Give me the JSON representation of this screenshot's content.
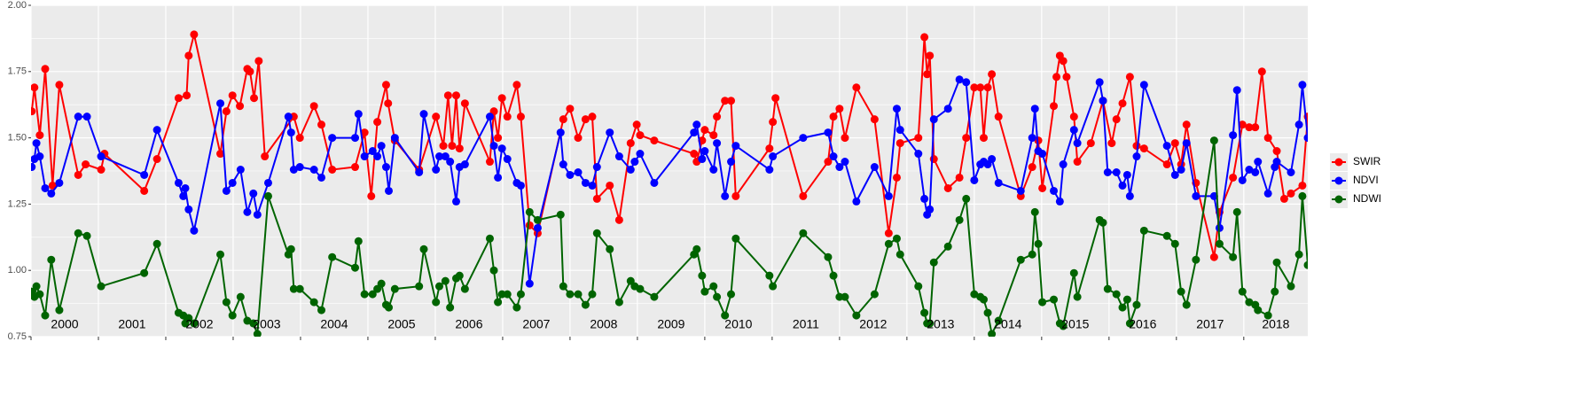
{
  "chart_data": {
    "type": "line",
    "xlim": [
      2000,
      2018.95
    ],
    "ylim": [
      0.75,
      2.0
    ],
    "xticks": [
      2000,
      2001,
      2002,
      2003,
      2004,
      2005,
      2006,
      2007,
      2008,
      2009,
      2010,
      2011,
      2012,
      2013,
      2014,
      2015,
      2016,
      2017,
      2018
    ],
    "yticks": [
      {
        "value": 0.75,
        "label": "0.75"
      },
      {
        "value": 1.0,
        "label": "1.00"
      },
      {
        "value": 1.25,
        "label": "1.25"
      },
      {
        "value": 1.5,
        "label": "1.50"
      },
      {
        "value": 1.75,
        "label": "1.75"
      },
      {
        "value": 2.0,
        "label": "2.00"
      }
    ],
    "grid": true,
    "legend": "right",
    "series": [
      {
        "name": "SWIR",
        "color": "#ff0000",
        "x": [
          2000.01,
          2000.05,
          2000.13,
          2000.21,
          2000.32,
          2000.42,
          2000.7,
          2000.81,
          2001.04,
          2001.09,
          2001.68,
          2001.87,
          2002.19,
          2002.31,
          2002.34,
          2002.42,
          2002.81,
          2002.9,
          2002.99,
          2003.1,
          2003.21,
          2003.25,
          2003.31,
          2003.38,
          2003.47,
          2003.9,
          2003.99,
          2004.2,
          2004.31,
          2004.47,
          2004.81,
          2004.95,
          2005.05,
          2005.14,
          2005.27,
          2005.3,
          2005.4,
          2005.76,
          2006.01,
          2006.12,
          2006.19,
          2006.25,
          2006.31,
          2006.36,
          2006.44,
          2006.81,
          2006.87,
          2006.93,
          2006.99,
          2007.07,
          2007.21,
          2007.27,
          2007.4,
          2007.52,
          2007.9,
          2008.0,
          2008.12,
          2008.23,
          2008.33,
          2008.4,
          2008.59,
          2008.73,
          2008.9,
          2008.99,
          2009.04,
          2009.25,
          2009.84,
          2009.88,
          2009.96,
          2010.0,
          2010.13,
          2010.18,
          2010.3,
          2010.39,
          2010.46,
          2010.96,
          2011.01,
          2011.05,
          2011.46,
          2011.83,
          2011.91,
          2012.0,
          2012.08,
          2012.25,
          2012.52,
          2012.73,
          2012.85,
          2012.9,
          2013.17,
          2013.26,
          2013.3,
          2013.34,
          2013.4,
          2013.61,
          2013.78,
          2013.88,
          2014.0,
          2014.09,
          2014.14,
          2014.2,
          2014.26,
          2014.36,
          2014.69,
          2014.86,
          2014.95,
          2015.01,
          2015.18,
          2015.22,
          2015.27,
          2015.32,
          2015.37,
          2015.48,
          2015.53,
          2015.73,
          2015.91,
          2016.04,
          2016.11,
          2016.2,
          2016.31,
          2016.41,
          2016.52,
          2016.86,
          2016.98,
          2017.07,
          2017.15,
          2017.29,
          2017.56,
          2017.64,
          2017.84,
          2017.98,
          2018.08,
          2018.17,
          2018.27,
          2018.36,
          2018.49,
          2018.6,
          2018.7,
          2018.87,
          2018.95
        ],
        "values": [
          1.6,
          1.69,
          1.51,
          1.76,
          1.32,
          1.7,
          1.36,
          1.4,
          1.38,
          1.44,
          1.3,
          1.42,
          1.65,
          1.66,
          1.81,
          1.89,
          1.44,
          1.6,
          1.66,
          1.62,
          1.76,
          1.75,
          1.65,
          1.79,
          1.43,
          1.58,
          1.5,
          1.62,
          1.55,
          1.38,
          1.39,
          1.52,
          1.28,
          1.56,
          1.7,
          1.63,
          1.49,
          1.38,
          1.58,
          1.47,
          1.66,
          1.47,
          1.66,
          1.46,
          1.63,
          1.41,
          1.6,
          1.5,
          1.65,
          1.58,
          1.7,
          1.58,
          1.17,
          1.14,
          1.57,
          1.61,
          1.5,
          1.57,
          1.58,
          1.27,
          1.32,
          1.19,
          1.48,
          1.55,
          1.51,
          1.49,
          1.44,
          1.41,
          1.49,
          1.53,
          1.51,
          1.58,
          1.64,
          1.64,
          1.28,
          1.46,
          1.56,
          1.65,
          1.28,
          1.41,
          1.58,
          1.61,
          1.5,
          1.69,
          1.57,
          1.14,
          1.35,
          1.48,
          1.5,
          1.88,
          1.74,
          1.81,
          1.42,
          1.31,
          1.35,
          1.5,
          1.69,
          1.69,
          1.5,
          1.69,
          1.74,
          1.58,
          1.28,
          1.39,
          1.49,
          1.31,
          1.62,
          1.73,
          1.81,
          1.79,
          1.73,
          1.58,
          1.41,
          1.48,
          1.64,
          1.48,
          1.57,
          1.63,
          1.73,
          1.47,
          1.46,
          1.4,
          1.48,
          1.4,
          1.55,
          1.33,
          1.05,
          1.22,
          1.35,
          1.55,
          1.54,
          1.54,
          1.75,
          1.5,
          1.45,
          1.27,
          1.29,
          1.32,
          1.58
        ]
      },
      {
        "name": "NDVI",
        "color": "#0000ff",
        "x": [
          2000.01,
          2000.05,
          2000.08,
          2000.13,
          2000.21,
          2000.3,
          2000.42,
          2000.7,
          2000.83,
          2001.04,
          2001.68,
          2001.87,
          2002.19,
          2002.26,
          2002.29,
          2002.34,
          2002.42,
          2002.81,
          2002.9,
          2002.99,
          2003.11,
          2003.21,
          2003.3,
          2003.36,
          2003.52,
          2003.82,
          2003.86,
          2003.9,
          2003.99,
          2004.2,
          2004.31,
          2004.47,
          2004.81,
          2004.86,
          2004.95,
          2005.07,
          2005.14,
          2005.2,
          2005.27,
          2005.31,
          2005.4,
          2005.76,
          2005.83,
          2006.01,
          2006.06,
          2006.15,
          2006.22,
          2006.31,
          2006.36,
          2006.44,
          2006.81,
          2006.87,
          2006.93,
          2006.99,
          2007.07,
          2007.21,
          2007.27,
          2007.4,
          2007.52,
          2007.86,
          2007.9,
          2008.0,
          2008.12,
          2008.23,
          2008.33,
          2008.4,
          2008.59,
          2008.73,
          2008.9,
          2008.96,
          2009.04,
          2009.25,
          2009.84,
          2009.88,
          2009.96,
          2010.0,
          2010.13,
          2010.18,
          2010.3,
          2010.39,
          2010.46,
          2010.96,
          2011.01,
          2011.46,
          2011.83,
          2011.91,
          2012.0,
          2012.08,
          2012.25,
          2012.52,
          2012.73,
          2012.85,
          2012.9,
          2013.17,
          2013.26,
          2013.3,
          2013.34,
          2013.4,
          2013.61,
          2013.78,
          2013.88,
          2014.0,
          2014.09,
          2014.14,
          2014.2,
          2014.26,
          2014.36,
          2014.69,
          2014.86,
          2014.9,
          2014.95,
          2015.01,
          2015.18,
          2015.27,
          2015.32,
          2015.48,
          2015.53,
          2015.86,
          2015.91,
          2015.98,
          2016.11,
          2016.2,
          2016.27,
          2016.31,
          2016.41,
          2016.52,
          2016.86,
          2016.98,
          2017.07,
          2017.15,
          2017.29,
          2017.56,
          2017.64,
          2017.84,
          2017.9,
          2017.98,
          2018.08,
          2018.17,
          2018.21,
          2018.36,
          2018.46,
          2018.49,
          2018.7,
          2018.82,
          2018.87,
          2018.95
        ],
        "values": [
          1.39,
          1.42,
          1.48,
          1.43,
          1.31,
          1.29,
          1.33,
          1.58,
          1.58,
          1.43,
          1.36,
          1.53,
          1.33,
          1.28,
          1.31,
          1.23,
          1.15,
          1.63,
          1.3,
          1.33,
          1.38,
          1.22,
          1.29,
          1.21,
          1.33,
          1.58,
          1.52,
          1.38,
          1.39,
          1.38,
          1.35,
          1.5,
          1.5,
          1.59,
          1.43,
          1.45,
          1.43,
          1.47,
          1.39,
          1.3,
          1.5,
          1.37,
          1.59,
          1.38,
          1.43,
          1.43,
          1.41,
          1.26,
          1.39,
          1.4,
          1.58,
          1.47,
          1.35,
          1.46,
          1.42,
          1.33,
          1.32,
          0.95,
          1.16,
          1.52,
          1.4,
          1.36,
          1.37,
          1.33,
          1.32,
          1.39,
          1.52,
          1.43,
          1.38,
          1.41,
          1.44,
          1.33,
          1.52,
          1.55,
          1.42,
          1.45,
          1.38,
          1.48,
          1.28,
          1.41,
          1.47,
          1.38,
          1.43,
          1.5,
          1.52,
          1.43,
          1.39,
          1.41,
          1.26,
          1.39,
          1.28,
          1.61,
          1.53,
          1.44,
          1.27,
          1.21,
          1.23,
          1.57,
          1.61,
          1.72,
          1.71,
          1.34,
          1.4,
          1.41,
          1.4,
          1.42,
          1.33,
          1.3,
          1.5,
          1.61,
          1.45,
          1.44,
          1.3,
          1.26,
          1.4,
          1.53,
          1.48,
          1.71,
          1.64,
          1.37,
          1.37,
          1.32,
          1.36,
          1.28,
          1.43,
          1.7,
          1.47,
          1.36,
          1.38,
          1.48,
          1.28,
          1.28,
          1.16,
          1.51,
          1.68,
          1.34,
          1.38,
          1.37,
          1.41,
          1.29,
          1.39,
          1.41,
          1.37,
          1.55,
          1.7,
          1.5
        ]
      },
      {
        "name": "NDWI",
        "color": "#006400",
        "x": [
          2000.01,
          2000.05,
          2000.08,
          2000.13,
          2000.21,
          2000.3,
          2000.42,
          2000.7,
          2000.83,
          2001.04,
          2001.68,
          2001.87,
          2002.19,
          2002.26,
          2002.29,
          2002.34,
          2002.42,
          2002.81,
          2002.9,
          2002.99,
          2003.11,
          2003.21,
          2003.3,
          2003.36,
          2003.52,
          2003.82,
          2003.86,
          2003.9,
          2003.99,
          2004.2,
          2004.31,
          2004.47,
          2004.81,
          2004.86,
          2004.95,
          2005.07,
          2005.14,
          2005.2,
          2005.27,
          2005.31,
          2005.4,
          2005.76,
          2005.83,
          2006.01,
          2006.06,
          2006.15,
          2006.22,
          2006.31,
          2006.36,
          2006.44,
          2006.81,
          2006.87,
          2006.93,
          2006.99,
          2007.07,
          2007.21,
          2007.27,
          2007.4,
          2007.52,
          2007.86,
          2007.9,
          2008.0,
          2008.12,
          2008.23,
          2008.33,
          2008.4,
          2008.59,
          2008.73,
          2008.9,
          2008.96,
          2009.04,
          2009.25,
          2009.84,
          2009.88,
          2009.96,
          2010.0,
          2010.13,
          2010.18,
          2010.3,
          2010.39,
          2010.46,
          2010.96,
          2011.01,
          2011.46,
          2011.83,
          2011.91,
          2012.0,
          2012.08,
          2012.25,
          2012.52,
          2012.73,
          2012.85,
          2012.9,
          2013.17,
          2013.26,
          2013.3,
          2013.34,
          2013.4,
          2013.61,
          2013.78,
          2013.88,
          2014.0,
          2014.09,
          2014.14,
          2014.2,
          2014.26,
          2014.36,
          2014.69,
          2014.86,
          2014.9,
          2014.95,
          2015.01,
          2015.18,
          2015.27,
          2015.32,
          2015.48,
          2015.53,
          2015.86,
          2015.91,
          2015.98,
          2016.11,
          2016.2,
          2016.27,
          2016.31,
          2016.41,
          2016.52,
          2016.86,
          2016.98,
          2017.07,
          2017.15,
          2017.29,
          2017.56,
          2017.64,
          2017.84,
          2017.9,
          2017.98,
          2018.08,
          2018.17,
          2018.21,
          2018.36,
          2018.46,
          2018.49,
          2018.7,
          2018.82,
          2018.87,
          2018.95
        ],
        "values": [
          0.92,
          0.9,
          0.94,
          0.91,
          0.83,
          1.04,
          0.85,
          1.14,
          1.13,
          0.94,
          0.99,
          1.1,
          0.84,
          0.83,
          0.8,
          0.82,
          0.8,
          1.06,
          0.88,
          0.83,
          0.9,
          0.81,
          0.8,
          0.76,
          1.28,
          1.06,
          1.08,
          0.93,
          0.93,
          0.88,
          0.85,
          1.05,
          1.01,
          1.11,
          0.91,
          0.91,
          0.93,
          0.95,
          0.87,
          0.86,
          0.93,
          0.94,
          1.08,
          0.88,
          0.94,
          0.96,
          0.86,
          0.97,
          0.98,
          0.93,
          1.12,
          1.0,
          0.88,
          0.91,
          0.91,
          0.86,
          0.91,
          1.22,
          1.19,
          1.21,
          0.94,
          0.91,
          0.91,
          0.87,
          0.91,
          1.14,
          1.08,
          0.88,
          0.96,
          0.94,
          0.93,
          0.9,
          1.06,
          1.08,
          0.98,
          0.92,
          0.94,
          0.9,
          0.83,
          0.91,
          1.12,
          0.98,
          0.94,
          1.14,
          1.05,
          0.98,
          0.9,
          0.9,
          0.83,
          0.91,
          1.1,
          1.12,
          1.06,
          0.94,
          0.84,
          0.8,
          0.8,
          1.03,
          1.09,
          1.19,
          1.27,
          0.91,
          0.9,
          0.89,
          0.84,
          0.76,
          0.81,
          1.04,
          1.06,
          1.22,
          1.1,
          0.88,
          0.89,
          0.8,
          0.79,
          0.99,
          0.9,
          1.19,
          1.18,
          0.93,
          0.91,
          0.86,
          0.89,
          0.8,
          0.87,
          1.15,
          1.13,
          1.1,
          0.92,
          0.87,
          1.04,
          1.49,
          1.1,
          1.05,
          1.22,
          0.92,
          0.88,
          0.87,
          0.85,
          0.83,
          0.92,
          1.03,
          0.94,
          1.06,
          1.28,
          1.02
        ]
      }
    ]
  }
}
